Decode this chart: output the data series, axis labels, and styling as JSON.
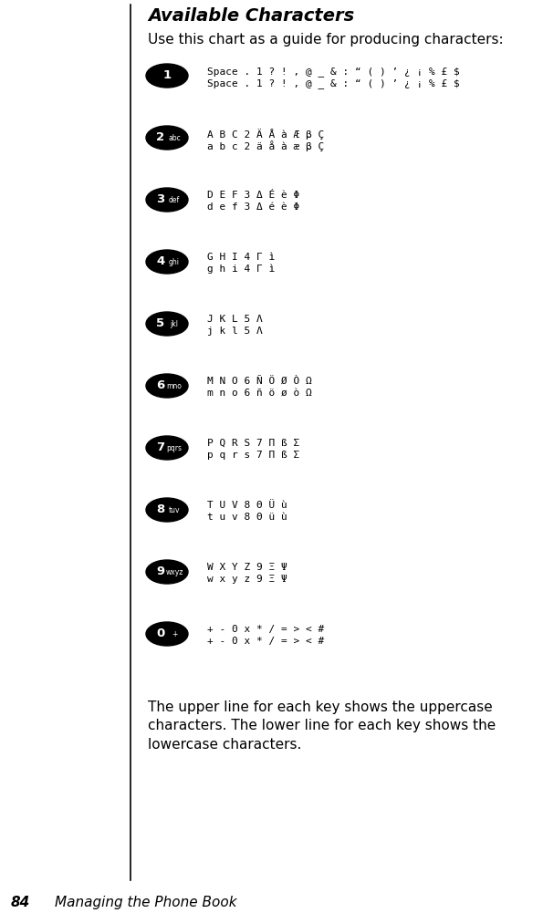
{
  "title": "Available Characters",
  "subtitle": "Use this chart as a guide for producing characters:",
  "footer_text": "The upper line for each key shows the uppercase\ncharacters. The lower line for each key shows the\nlowercase characters.",
  "page_label": "84",
  "page_chapter": "Managing the Phone Book",
  "background_color": "#ffffff",
  "keys": [
    {
      "label": "1",
      "sublabel": "",
      "upper": "Space . 1 ? ! , @ _ & : “ ( ) ’ ¿ ¡ % £ $",
      "lower": "Space . 1 ? ! , @ _ & : “ ( ) ’ ¿ ¡ % £ $"
    },
    {
      "label": "2",
      "sublabel": "abc",
      "upper": "A B C 2 Ä Å à Æ β Ç",
      "lower": "a b c 2 ä å à æ β Ç"
    },
    {
      "label": "3",
      "sublabel": "def",
      "upper": "D E F 3 Δ É è Φ",
      "lower": "d e f 3 Δ é è Φ"
    },
    {
      "label": "4",
      "sublabel": "ghi",
      "upper": "G H I 4 Γ ì",
      "lower": "g h i 4 Γ ì"
    },
    {
      "label": "5",
      "sublabel": "jkl",
      "upper": "J K L 5 Λ",
      "lower": "j k l 5 Λ"
    },
    {
      "label": "6",
      "sublabel": "mno",
      "upper": "M N O 6 Ñ Ö Ø Ò Ω",
      "lower": "m n o 6 ñ ö ø ò Ω"
    },
    {
      "label": "7",
      "sublabel": "pqrs",
      "upper": "P Q R S 7 Π ß Σ",
      "lower": "p q r s 7 Π ß Σ"
    },
    {
      "label": "8",
      "sublabel": "tuv",
      "upper": "T U V 8 Θ Ü ù",
      "lower": "t u v 8 Θ ü ù"
    },
    {
      "label": "9",
      "sublabel": "wxyz",
      "upper": "W X Y Z 9 Ξ Ψ",
      "lower": "w x y z 9 Ξ Ψ"
    },
    {
      "label": "0",
      "sublabel": "+",
      "upper": "+ - 0 x * / = > < #",
      "lower": "+ - 0 x * / = > < #"
    }
  ]
}
